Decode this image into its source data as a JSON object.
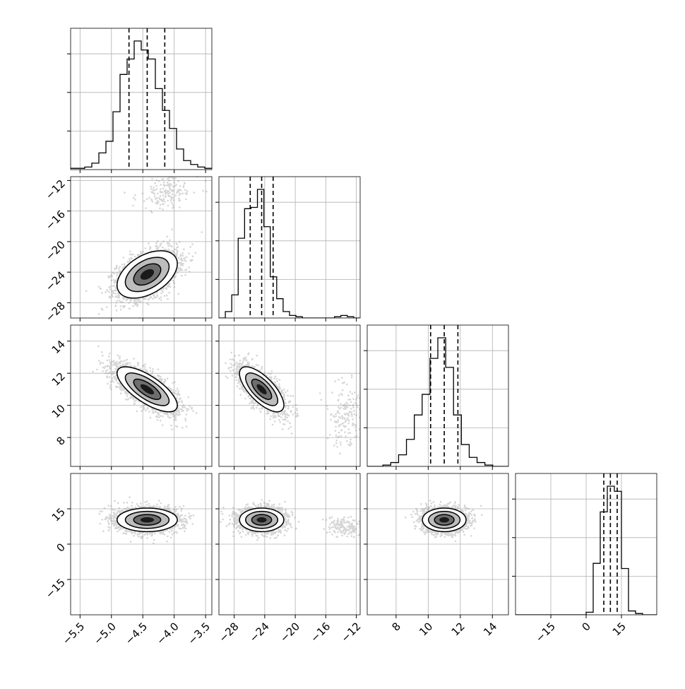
{
  "chart_data": {
    "type": "corner",
    "parameters": 4,
    "axis_ranges": [
      [
        -5.65,
        -3.4
      ],
      [
        -30,
        -11.5
      ],
      [
        6.2,
        15.0
      ],
      [
        -30,
        30
      ]
    ],
    "y_axis_ranges": [
      [
        -30,
        -11.5
      ],
      [
        6.2,
        15.0
      ],
      [
        -30,
        30
      ]
    ],
    "x_tick_labels": [
      [
        "-5.5",
        "-5.0",
        "-4.5",
        "-4.0",
        "-3.5"
      ],
      [
        "-28",
        "-24",
        "-20",
        "-16",
        "-12"
      ],
      [
        "8",
        "10",
        "12",
        "14"
      ],
      [
        "-15",
        "0",
        "15"
      ]
    ],
    "y_tick_labels": [
      [
        "-12",
        "-16",
        "-20",
        "-24",
        "-28"
      ],
      [
        "14",
        "12",
        "10",
        "8"
      ],
      [
        "15",
        "0",
        "-15"
      ]
    ],
    "x_ticks": [
      [
        -5.5,
        -5.0,
        -4.5,
        -4.0,
        -3.5
      ],
      [
        -28,
        -24,
        -20,
        -16,
        -12
      ],
      [
        8,
        10,
        12,
        14
      ],
      [
        -15,
        0,
        15
      ]
    ],
    "y_ticks": [
      [
        -12,
        -16,
        -20,
        -24,
        -28
      ],
      [
        14,
        12,
        10,
        8
      ],
      [
        15,
        0,
        -15
      ]
    ],
    "quantiles": [
      [
        -4.72,
        -4.43,
        -4.15
      ],
      [
        -25.9,
        -24.4,
        -22.9
      ],
      [
        10.15,
        11.0,
        11.85
      ],
      [
        7.5,
        10.3,
        13.2
      ]
    ],
    "histograms": [
      [
        0.01,
        0.01,
        0.02,
        0.05,
        0.13,
        0.22,
        0.45,
        0.74,
        0.86,
        1.0,
        0.93,
        0.86,
        0.63,
        0.46,
        0.32,
        0.16,
        0.07,
        0.04,
        0.02,
        0.01
      ],
      [
        0.0,
        0.05,
        0.18,
        0.62,
        0.85,
        0.86,
        1.0,
        0.71,
        0.32,
        0.15,
        0.05,
        0.02,
        0.01,
        0.0,
        0.0,
        0.0,
        0.0,
        0.0,
        0.01,
        0.02,
        0.01,
        0.0
      ],
      [
        0.0,
        0.0,
        0.01,
        0.03,
        0.09,
        0.21,
        0.4,
        0.56,
        0.84,
        1.0,
        0.77,
        0.4,
        0.17,
        0.07,
        0.03,
        0.01,
        0.0,
        0.0
      ],
      [
        0.0,
        0.0,
        0.0,
        0.0,
        0.0,
        0.0,
        0.0,
        0.0,
        0.0,
        0.0,
        0.02,
        0.4,
        0.8,
        1.0,
        0.96,
        0.36,
        0.03,
        0.01,
        0.0,
        0.0
      ]
    ],
    "correlations": {
      "1-0": {
        "cx": -4.43,
        "cy": -24.3,
        "sx": 0.24,
        "sy": 1.55,
        "rho": 0.45
      },
      "2-0": {
        "cx": -4.43,
        "cy": 11.0,
        "sx": 0.24,
        "sy": 0.7,
        "rho": -0.72
      },
      "2-1": {
        "cx": -24.4,
        "cy": 11.0,
        "sx": 1.45,
        "sy": 0.7,
        "rho": -0.7
      },
      "3-0": {
        "cx": -4.43,
        "cy": 10.3,
        "sx": 0.24,
        "sy": 2.5,
        "rho": 0.0
      },
      "3-1": {
        "cx": -24.4,
        "cy": 10.3,
        "sx": 1.45,
        "sy": 2.5,
        "rho": 0.0
      },
      "3-2": {
        "cx": 11.0,
        "cy": 10.3,
        "sx": 0.68,
        "sy": 2.5,
        "rho": 0.0
      }
    },
    "secondary_mode": {
      "x1": -13.5,
      "sx1": 1.2,
      "rho": 0.3
    },
    "grid": true,
    "legend": "none"
  }
}
